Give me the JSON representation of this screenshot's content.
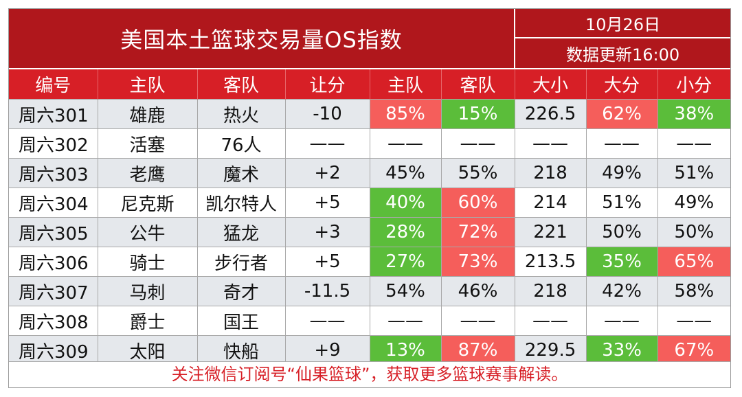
{
  "title": "美国本土篮球交易量OS指数",
  "date": "10月26日",
  "update": "数据更新16:00",
  "colors": {
    "banner": "#b0171c",
    "header": "#d71f26",
    "red": "#f55e5b",
    "green": "#5bbd3a",
    "footer_text": "#d71f26"
  },
  "columns": [
    "编号",
    "主队",
    "客队",
    "让分",
    "主队",
    "客队",
    "大小",
    "大分",
    "小分"
  ],
  "rows": [
    {
      "cells": [
        "周六301",
        "雄鹿",
        "热火",
        "-10",
        "85%",
        "15%",
        "226.5",
        "62%",
        "38%"
      ],
      "highlights": [
        "",
        "",
        "",
        "",
        "red",
        "green",
        "",
        "red",
        "green"
      ]
    },
    {
      "cells": [
        "周六302",
        "活塞",
        "76人",
        "——",
        "——",
        "——",
        "——",
        "——",
        "——"
      ],
      "highlights": [
        "",
        "",
        "",
        "",
        "",
        "",
        "",
        "",
        ""
      ]
    },
    {
      "cells": [
        "周六303",
        "老鹰",
        "魔术",
        "+2",
        "45%",
        "55%",
        "218",
        "49%",
        "51%"
      ],
      "highlights": [
        "",
        "",
        "",
        "",
        "",
        "",
        "",
        "",
        ""
      ]
    },
    {
      "cells": [
        "周六304",
        "尼克斯",
        "凯尔特人",
        "+5",
        "40%",
        "60%",
        "214",
        "51%",
        "49%"
      ],
      "highlights": [
        "",
        "",
        "",
        "",
        "green",
        "red",
        "",
        "",
        ""
      ]
    },
    {
      "cells": [
        "周六305",
        "公牛",
        "猛龙",
        "+3",
        "28%",
        "72%",
        "221",
        "50%",
        "50%"
      ],
      "highlights": [
        "",
        "",
        "",
        "",
        "green",
        "red",
        "",
        "",
        ""
      ]
    },
    {
      "cells": [
        "周六306",
        "骑士",
        "步行者",
        "+5",
        "27%",
        "73%",
        "213.5",
        "35%",
        "65%"
      ],
      "highlights": [
        "",
        "",
        "",
        "",
        "green",
        "red",
        "",
        "green",
        "red"
      ]
    },
    {
      "cells": [
        "周六307",
        "马刺",
        "奇才",
        "-11.5",
        "54%",
        "46%",
        "218",
        "42%",
        "58%"
      ],
      "highlights": [
        "",
        "",
        "",
        "",
        "",
        "",
        "",
        "",
        ""
      ]
    },
    {
      "cells": [
        "周六308",
        "爵士",
        "国王",
        "——",
        "——",
        "——",
        "——",
        "——",
        "——"
      ],
      "highlights": [
        "",
        "",
        "",
        "",
        "",
        "",
        "",
        "",
        ""
      ]
    },
    {
      "cells": [
        "周六309",
        "太阳",
        "快船",
        "+9",
        "13%",
        "87%",
        "229.5",
        "33%",
        "67%"
      ],
      "highlights": [
        "",
        "",
        "",
        "",
        "green",
        "red",
        "",
        "green",
        "red"
      ]
    }
  ],
  "footer": "关注微信订阅号“仙果篮球”，获取更多篮球赛事解读。"
}
